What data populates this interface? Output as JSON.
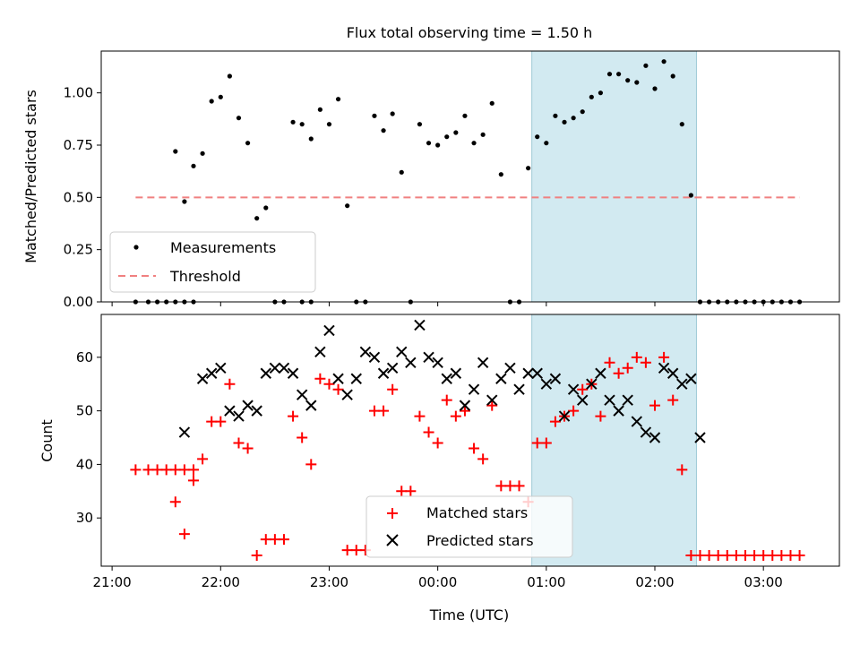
{
  "figure": {
    "title": "Flux total observing time = 1.50 h",
    "xlabel": "Time (UTC)",
    "x_tick_labels": [
      "21:00",
      "22:00",
      "23:00",
      "00:00",
      "01:00",
      "02:00",
      "03:00"
    ]
  },
  "colors": {
    "measurement": "#000000",
    "threshold": "#f08080",
    "matched": "#ff0000",
    "predicted": "#000000",
    "span": "#add8e6"
  },
  "chart_data": [
    {
      "type": "scatter",
      "title": "Flux total observing time = 1.50 h",
      "xlabel": "",
      "ylabel": "Matched/Predicted stars",
      "x_unit": "hours after 21:00 UTC",
      "xlim": [
        -0.1,
        6.7
      ],
      "ylim": [
        0.0,
        1.2
      ],
      "y_ticks": [
        0.0,
        0.25,
        0.5,
        0.75,
        1.0
      ],
      "y_tick_labels": [
        "0.00",
        "0.25",
        "0.50",
        "0.75",
        "1.00"
      ],
      "legend": {
        "placement": "lower-left",
        "entries": [
          "Measurements",
          "Threshold"
        ]
      },
      "shaded_span": {
        "x_start": "00:52",
        "x_end": "02:23"
      },
      "threshold": {
        "name": "Threshold",
        "y": 0.5,
        "x_start": "21:13",
        "x_end": "03:20"
      },
      "series": [
        {
          "name": "Measurements",
          "x": [
            "21:13",
            "21:20",
            "21:25",
            "21:30",
            "21:35",
            "21:40",
            "21:45",
            "21:35",
            "21:40",
            "21:45",
            "21:50",
            "21:55",
            "22:00",
            "22:05",
            "22:10",
            "22:15",
            "22:20",
            "22:25",
            "22:30",
            "22:35",
            "22:40",
            "22:45",
            "22:50",
            "22:55",
            "23:00",
            "23:05",
            "23:10",
            "23:15",
            "23:20",
            "23:25",
            "23:30",
            "23:35",
            "23:40",
            "23:45",
            "23:50",
            "23:55",
            "00:00",
            "00:05",
            "00:10",
            "00:15",
            "00:20",
            "00:25",
            "00:30",
            "00:35",
            "00:40",
            "00:45",
            "00:50",
            "00:55",
            "01:00",
            "01:05",
            "01:10",
            "01:15",
            "01:20",
            "01:25",
            "01:30",
            "01:35",
            "01:40",
            "01:45",
            "01:50",
            "01:55",
            "02:00",
            "02:05",
            "02:10",
            "02:15",
            "02:20",
            "02:25",
            "02:30",
            "02:35",
            "02:40",
            "02:45",
            "02:50",
            "02:55",
            "03:00",
            "03:05",
            "03:10",
            "03:15",
            "03:20",
            "22:45",
            "22:50"
          ],
          "y": [
            0.0,
            0.0,
            0.0,
            0.0,
            0.0,
            0.0,
            0.0,
            0.72,
            0.48,
            0.65,
            0.71,
            0.96,
            0.98,
            1.08,
            0.88,
            0.76,
            0.4,
            0.45,
            0.0,
            0.0,
            0.86,
            0.85,
            0.78,
            0.92,
            0.85,
            0.97,
            0.46,
            0.0,
            0.0,
            0.89,
            0.82,
            0.9,
            0.62,
            0.0,
            0.85,
            0.76,
            0.75,
            0.79,
            0.81,
            0.89,
            0.76,
            0.8,
            0.95,
            0.61,
            0.0,
            0.0,
            0.64,
            0.79,
            0.76,
            0.89,
            0.86,
            0.88,
            0.91,
            0.98,
            1.0,
            1.09,
            1.09,
            1.06,
            1.05,
            1.13,
            1.02,
            1.15,
            1.08,
            0.85,
            0.51,
            0.0,
            0.0,
            0.0,
            0.0,
            0.0,
            0.0,
            0.0,
            0.0,
            0.0,
            0.0,
            0.0,
            0.0,
            0.0,
            0.0
          ]
        }
      ]
    },
    {
      "type": "scatter",
      "xlabel": "Time (UTC)",
      "ylabel": "Count",
      "x_unit": "hours after 21:00 UTC",
      "xlim": [
        -0.1,
        6.7
      ],
      "ylim": [
        21,
        68
      ],
      "y_ticks": [
        30,
        40,
        50,
        60
      ],
      "y_tick_labels": [
        "30",
        "40",
        "50",
        "60"
      ],
      "legend": {
        "placement": "lower-center",
        "entries": [
          "Matched stars",
          "Predicted stars"
        ]
      },
      "shaded_span": {
        "x_start": "00:52",
        "x_end": "02:23"
      },
      "series": [
        {
          "name": "Matched stars",
          "marker": "+",
          "x": [
            "21:13",
            "21:20",
            "21:25",
            "21:30",
            "21:35",
            "21:40",
            "21:45",
            "21:35",
            "21:40",
            "21:45",
            "21:50",
            "21:55",
            "22:00",
            "22:05",
            "22:10",
            "22:15",
            "22:20",
            "22:25",
            "22:30",
            "22:35",
            "22:40",
            "22:45",
            "22:50",
            "22:55",
            "23:00",
            "23:05",
            "23:10",
            "23:15",
            "23:20",
            "23:25",
            "23:30",
            "23:35",
            "23:40",
            "23:45",
            "23:50",
            "23:55",
            "00:00",
            "00:05",
            "00:10",
            "00:15",
            "00:20",
            "00:25",
            "00:30",
            "00:35",
            "00:40",
            "00:45",
            "00:50",
            "00:55",
            "01:00",
            "01:05",
            "01:10",
            "01:15",
            "01:20",
            "01:25",
            "01:30",
            "01:35",
            "01:40",
            "01:45",
            "01:50",
            "01:55",
            "02:00",
            "02:05",
            "02:10",
            "02:15",
            "02:20",
            "02:25",
            "02:30",
            "02:35",
            "02:40",
            "02:45",
            "02:50",
            "02:55",
            "03:00",
            "03:05",
            "03:10",
            "03:15",
            "03:20"
          ],
          "y": [
            39,
            39,
            39,
            39,
            39,
            39,
            39,
            33,
            27,
            37,
            41,
            48,
            48,
            55,
            44,
            43,
            23,
            26,
            26,
            26,
            49,
            45,
            40,
            56,
            55,
            54,
            24,
            24,
            24,
            50,
            50,
            54,
            35,
            35,
            49,
            46,
            44,
            52,
            49,
            50,
            43,
            41,
            51,
            36,
            36,
            36,
            33,
            44,
            44,
            48,
            49,
            50,
            54,
            55,
            49,
            59,
            57,
            58,
            60,
            59,
            51,
            60,
            52,
            39,
            23,
            23,
            23,
            23,
            23,
            23,
            23,
            23,
            23,
            23,
            23,
            23,
            23
          ]
        },
        {
          "name": "Predicted stars",
          "marker": "x",
          "x": [
            "21:40",
            "21:50",
            "21:55",
            "22:00",
            "22:05",
            "22:10",
            "22:15",
            "22:20",
            "22:25",
            "22:30",
            "22:35",
            "22:40",
            "22:45",
            "22:50",
            "22:55",
            "23:00",
            "23:05",
            "23:10",
            "23:15",
            "23:20",
            "23:25",
            "23:30",
            "23:35",
            "23:40",
            "23:45",
            "23:50",
            "23:55",
            "00:00",
            "00:05",
            "00:10",
            "00:15",
            "00:20",
            "00:25",
            "00:30",
            "00:35",
            "00:40",
            "00:45",
            "00:50",
            "00:55",
            "01:00",
            "01:05",
            "01:10",
            "01:15",
            "01:20",
            "01:25",
            "01:30",
            "01:35",
            "01:40",
            "01:45",
            "01:50",
            "01:55",
            "02:00",
            "02:05",
            "02:10",
            "02:15",
            "02:20",
            "02:25"
          ],
          "y": [
            46,
            56,
            57,
            58,
            50,
            49,
            51,
            50,
            57,
            58,
            58,
            57,
            53,
            51,
            61,
            65,
            56,
            53,
            56,
            61,
            60,
            57,
            58,
            61,
            59,
            66,
            60,
            59,
            56,
            57,
            51,
            54,
            59,
            52,
            56,
            58,
            54,
            57,
            57,
            55,
            56,
            49,
            54,
            52,
            55,
            57,
            52,
            50,
            52,
            48,
            46,
            45,
            58,
            57,
            55,
            56,
            45
          ]
        }
      ]
    }
  ]
}
